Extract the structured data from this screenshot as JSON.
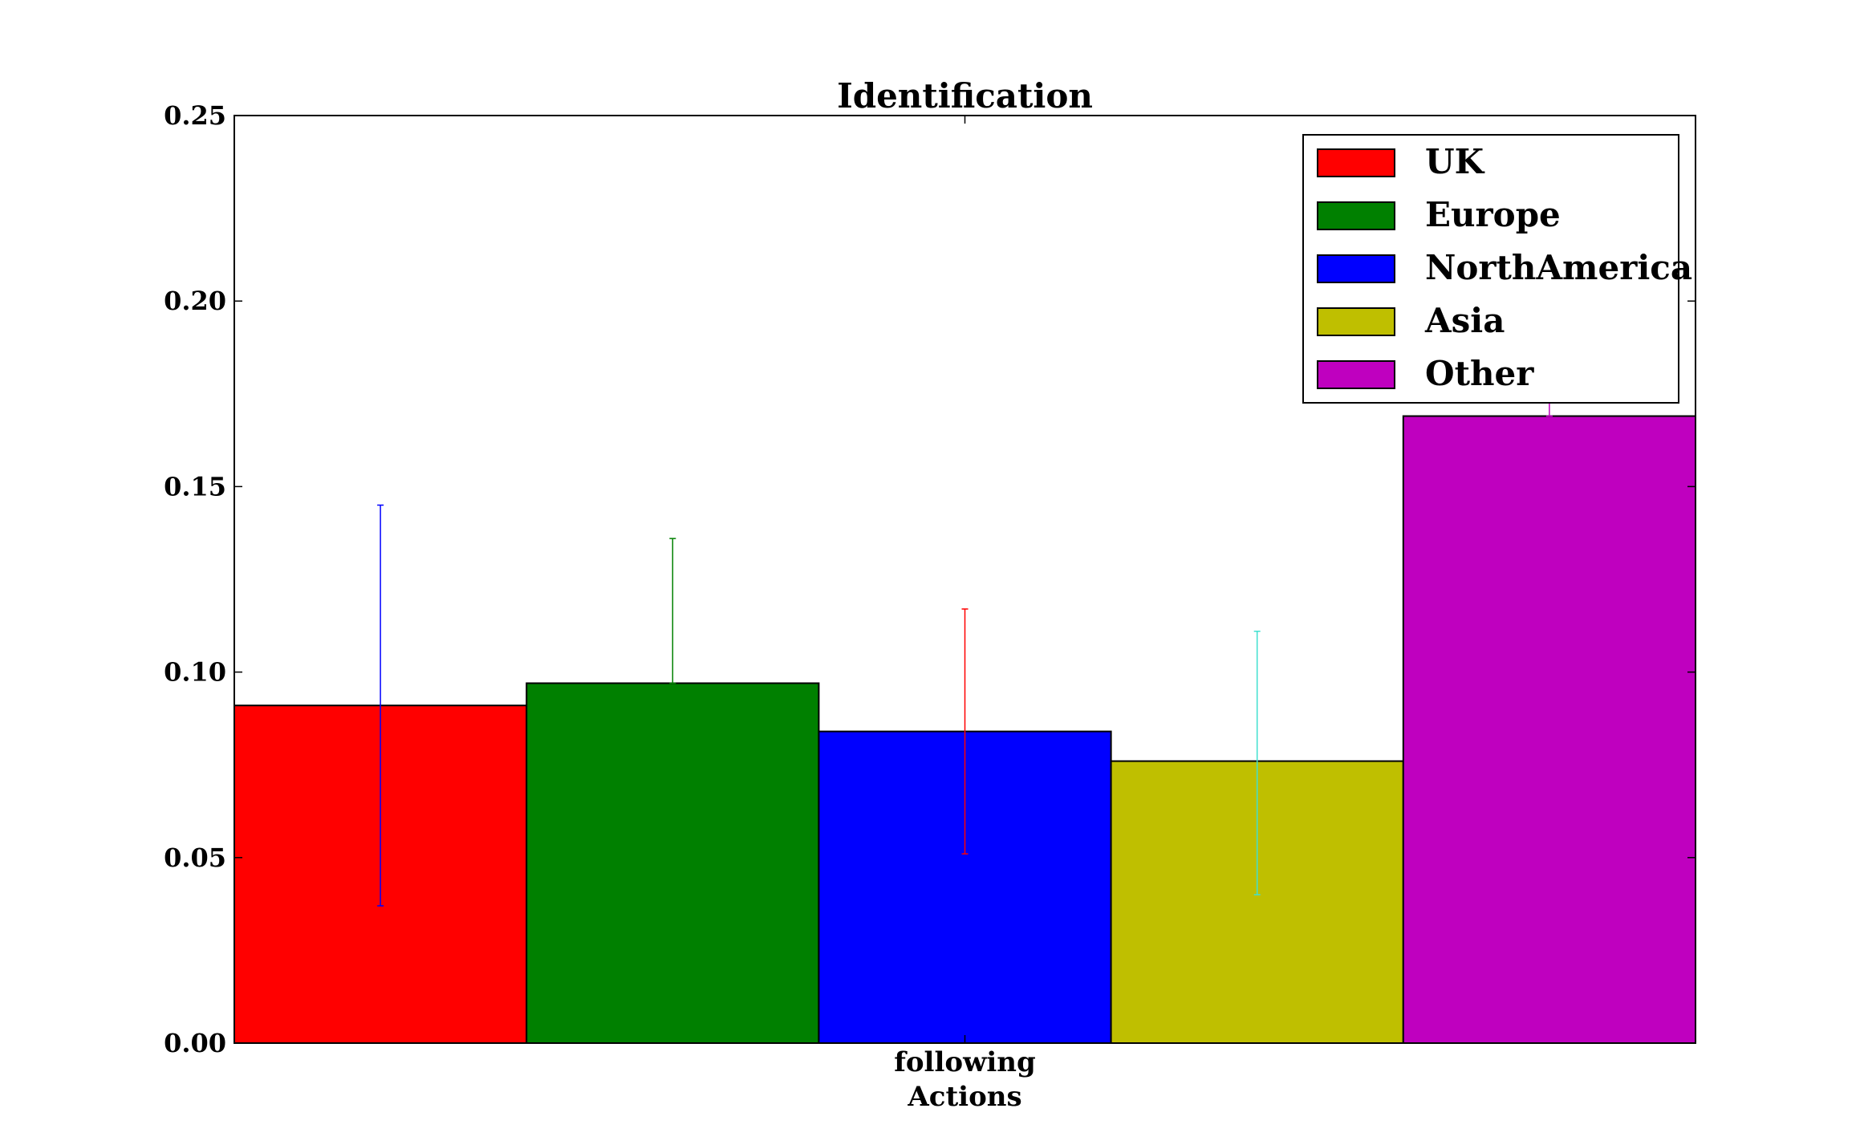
{
  "chart_data": {
    "type": "bar",
    "title": "Identification",
    "xlabel": "Actions",
    "ylabel": "",
    "categories": [
      "following"
    ],
    "ylim": [
      0,
      0.25
    ],
    "yticks": [
      "0.00",
      "0.05",
      "0.10",
      "0.15",
      "0.20",
      "0.25"
    ],
    "legend_position": "top-right",
    "grid": false,
    "series": [
      {
        "name": "UK",
        "values": [
          0.091
        ],
        "error": [
          [
            0.037,
            0.145
          ]
        ],
        "color": "#ff0000",
        "error_color": "#0000ff"
      },
      {
        "name": "Europe",
        "values": [
          0.097
        ],
        "error": [
          [
            0.097,
            0.136
          ]
        ],
        "color": "#008000",
        "error_color": "#008000"
      },
      {
        "name": "NorthAmerica",
        "values": [
          0.084
        ],
        "error": [
          [
            0.051,
            0.117
          ]
        ],
        "color": "#0000ff",
        "error_color": "#ff0000"
      },
      {
        "name": "Asia",
        "values": [
          0.076
        ],
        "error": [
          [
            0.04,
            0.111
          ]
        ],
        "color": "#bfbf00",
        "error_color": "#40e0d0"
      },
      {
        "name": "Other",
        "values": [
          0.169
        ],
        "error": [
          [
            0.169,
            0.18
          ]
        ],
        "color": "#bf00bf",
        "error_color": "#bf00bf"
      }
    ]
  }
}
